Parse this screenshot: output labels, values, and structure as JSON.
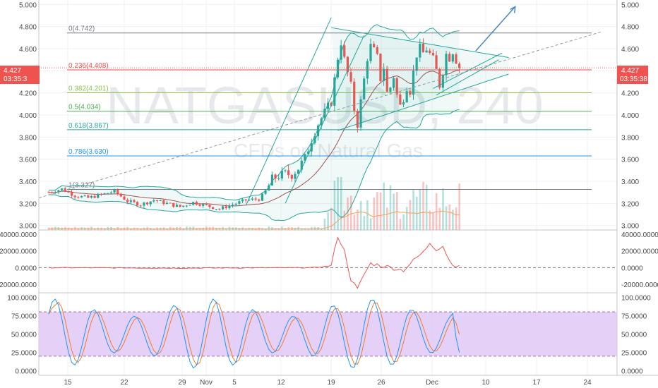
{
  "symbol_watermark": "NATGASUSD, 240",
  "description_watermark": "CFDs on Natural Gas",
  "price_badge": {
    "price": "4.427",
    "countdown": "03:35:38",
    "color": "#ef5350"
  },
  "left_badge": {
    "price": "4.427",
    "countdown": "03:35:3"
  },
  "colors": {
    "up": "#26a69a",
    "down": "#ef5350",
    "bollinger": "#26a69a",
    "sma": "#a0524d",
    "volume_ma": "#f5a05a",
    "fib_line": "#ef5350",
    "channel": "#26a69a",
    "forecast_arrow": "#4a86c5",
    "rsi_band": "#e1c8f7",
    "stoch_k": "#2196f3",
    "stoch_d": "#f57c2a",
    "macd": "#ef5350"
  },
  "chart_data": [
    {
      "type": "candlestick",
      "title": "NATGASUSD, 240",
      "ylim": [
        2.96,
        5.04
      ],
      "yticks": [
        "5.000",
        "4.800",
        "4.600",
        "4.400",
        "4.200",
        "4.000",
        "3.800",
        "3.600",
        "3.400",
        "3.200",
        "3.000"
      ],
      "xticks": [
        "15",
        "22",
        "29",
        "Nov",
        "5",
        "12",
        "19",
        "26",
        "Dec",
        "10",
        "17",
        "24"
      ],
      "fib_levels": [
        {
          "label": "0(4.742)",
          "value": 4.742,
          "color": "#787b86"
        },
        {
          "label": "0.236(4.408)",
          "value": 4.408,
          "color": "#ef5350"
        },
        {
          "label": "0.382(4.201)",
          "value": 4.201,
          "color": "#8bc34a"
        },
        {
          "label": "0.5(4.034)",
          "value": 4.034,
          "color": "#4caf50"
        },
        {
          "label": "0.618(3.867)",
          "value": 3.867,
          "color": "#26a69a"
        },
        {
          "label": "0.786(3.630)",
          "value": 3.63,
          "color": "#2196f3"
        },
        {
          "label": "1(3.327)",
          "value": 3.327,
          "color": "#787b86"
        }
      ],
      "price_path": [
        [
          0,
          3.3
        ],
        [
          4,
          3.33
        ],
        [
          8,
          3.27
        ],
        [
          12,
          3.25
        ],
        [
          16,
          3.28
        ],
        [
          20,
          3.31
        ],
        [
          24,
          3.22
        ],
        [
          28,
          3.19
        ],
        [
          32,
          3.23
        ],
        [
          36,
          3.2
        ],
        [
          40,
          3.17
        ],
        [
          44,
          3.21
        ],
        [
          48,
          3.18
        ],
        [
          52,
          3.15
        ],
        [
          56,
          3.19
        ],
        [
          60,
          3.23
        ],
        [
          64,
          3.24
        ],
        [
          66,
          3.3
        ],
        [
          68,
          3.42
        ],
        [
          70,
          3.45
        ],
        [
          72,
          3.47
        ],
        [
          74,
          3.46
        ],
        [
          76,
          3.52
        ],
        [
          78,
          3.61
        ],
        [
          80,
          3.78
        ],
        [
          82,
          3.92
        ],
        [
          84,
          4.02
        ],
        [
          86,
          4.12
        ],
        [
          88,
          4.52
        ],
        [
          89,
          4.66
        ],
        [
          90,
          4.5
        ],
        [
          91,
          4.38
        ],
        [
          92,
          4.26
        ],
        [
          93,
          4.05
        ],
        [
          94,
          3.92
        ],
        [
          95,
          4.12
        ],
        [
          96,
          4.32
        ],
        [
          97,
          4.52
        ],
        [
          98,
          4.62
        ],
        [
          99,
          4.58
        ],
        [
          100,
          4.52
        ],
        [
          101,
          4.33
        ],
        [
          102,
          4.43
        ],
        [
          103,
          4.2
        ],
        [
          104,
          4.25
        ],
        [
          105,
          4.35
        ],
        [
          106,
          4.18
        ],
        [
          107,
          4.08
        ],
        [
          108,
          4.16
        ],
        [
          109,
          4.26
        ],
        [
          110,
          4.22
        ],
        [
          112,
          4.55
        ],
        [
          113,
          4.6
        ],
        [
          114,
          4.56
        ],
        [
          115,
          4.6
        ],
        [
          116,
          4.55
        ],
        [
          117,
          4.5
        ],
        [
          118,
          4.4
        ],
        [
          119,
          4.27
        ],
        [
          120,
          4.4
        ],
        [
          121,
          4.55
        ],
        [
          122,
          4.52
        ],
        [
          123,
          4.58
        ],
        [
          124,
          4.5
        ],
        [
          125,
          4.427
        ]
      ],
      "x_range": [
        -3,
        173
      ],
      "arrow_target": [
        142,
        4.98
      ]
    },
    {
      "type": "line",
      "title": "",
      "ylim": [
        -30000,
        45000
      ],
      "yticks": [
        "40000.0000",
        "20000.0000",
        "0.0000",
        "-20000.0000"
      ],
      "series_points": [
        [
          0,
          0
        ],
        [
          40,
          -500
        ],
        [
          80,
          0
        ],
        [
          86,
          2000
        ],
        [
          88,
          38000
        ],
        [
          90,
          20000
        ],
        [
          92,
          -14000
        ],
        [
          94,
          -26000
        ],
        [
          96,
          -8000
        ],
        [
          98,
          5000
        ],
        [
          102,
          2000
        ],
        [
          108,
          -3000
        ],
        [
          112,
          12000
        ],
        [
          114,
          18000
        ],
        [
          116,
          30000
        ],
        [
          118,
          22000
        ],
        [
          120,
          26000
        ],
        [
          122,
          8000
        ],
        [
          124,
          2000
        ],
        [
          125,
          500
        ]
      ]
    },
    {
      "type": "line",
      "title": "",
      "ylim": [
        -6,
        106
      ],
      "yticks": [
        "100.0000",
        "75.0000",
        "50.0000",
        "25.0000",
        "0.0000"
      ],
      "band": [
        20,
        80
      ]
    }
  ]
}
